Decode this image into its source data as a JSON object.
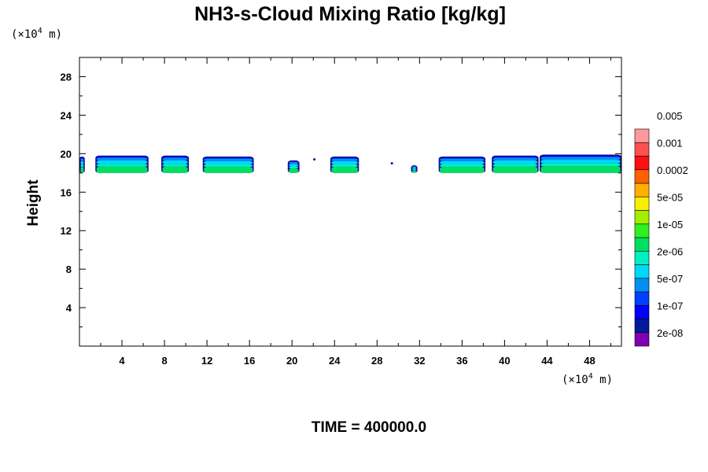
{
  "chart_data": {
    "type": "heatmap",
    "title": "NH3-s-Cloud Mixing Ratio [kg/kg]",
    "ylabel": "Height",
    "xlabel": "",
    "x_unit_prefix": "(×10",
    "x_unit_exp": "4",
    "x_unit_suffix": " m)",
    "y_unit_prefix": "(×10",
    "y_unit_exp": "4",
    "y_unit_suffix": " m)",
    "xlim": [
      0,
      51
    ],
    "ylim": [
      0,
      30
    ],
    "xticks": [
      4,
      8,
      12,
      16,
      20,
      24,
      28,
      32,
      36,
      40,
      44,
      48
    ],
    "yticks": [
      4,
      8,
      12,
      16,
      20,
      24,
      28
    ],
    "colorbar": {
      "colors": [
        "#7f00b2",
        "#001a9a",
        "#0000ff",
        "#0040ff",
        "#0090f0",
        "#00d8f8",
        "#00f0c0",
        "#00e060",
        "#30f020",
        "#a0f000",
        "#f8f000",
        "#ffb000",
        "#ff6000",
        "#ff1010",
        "#ff5050",
        "#ff9898"
      ],
      "labels": [
        "2e-08",
        "1e-07",
        "5e-07",
        "2e-06",
        "1e-05",
        "5e-05",
        "0.0002",
        "0.001",
        "0.005"
      ]
    },
    "cloud_layer": {
      "base_height": 18,
      "core_top": 19,
      "cloud_top": 19.8,
      "segments": [
        {
          "x_start": 0.0,
          "x_end": 0.5,
          "top": 19.7
        },
        {
          "x_start": 1.5,
          "x_end": 6.5,
          "top": 19.8
        },
        {
          "x_start": 7.7,
          "x_end": 10.3,
          "top": 19.8
        },
        {
          "x_start": 11.6,
          "x_end": 16.4,
          "top": 19.7
        },
        {
          "x_start": 19.6,
          "x_end": 20.7,
          "top": 19.3
        },
        {
          "x_start": 23.6,
          "x_end": 26.3,
          "top": 19.7
        },
        {
          "x_start": 31.2,
          "x_end": 31.8,
          "top": 18.8
        },
        {
          "x_start": 33.8,
          "x_end": 38.2,
          "top": 19.7
        },
        {
          "x_start": 38.8,
          "x_end": 43.2,
          "top": 19.8
        },
        {
          "x_start": 43.3,
          "x_end": 51.0,
          "top": 19.9
        }
      ],
      "specks": [
        {
          "x": 22.1,
          "y": 19.4
        },
        {
          "x": 29.4,
          "y": 19.0
        }
      ]
    }
  },
  "footer": {
    "time_label": "TIME = 400000.0"
  }
}
